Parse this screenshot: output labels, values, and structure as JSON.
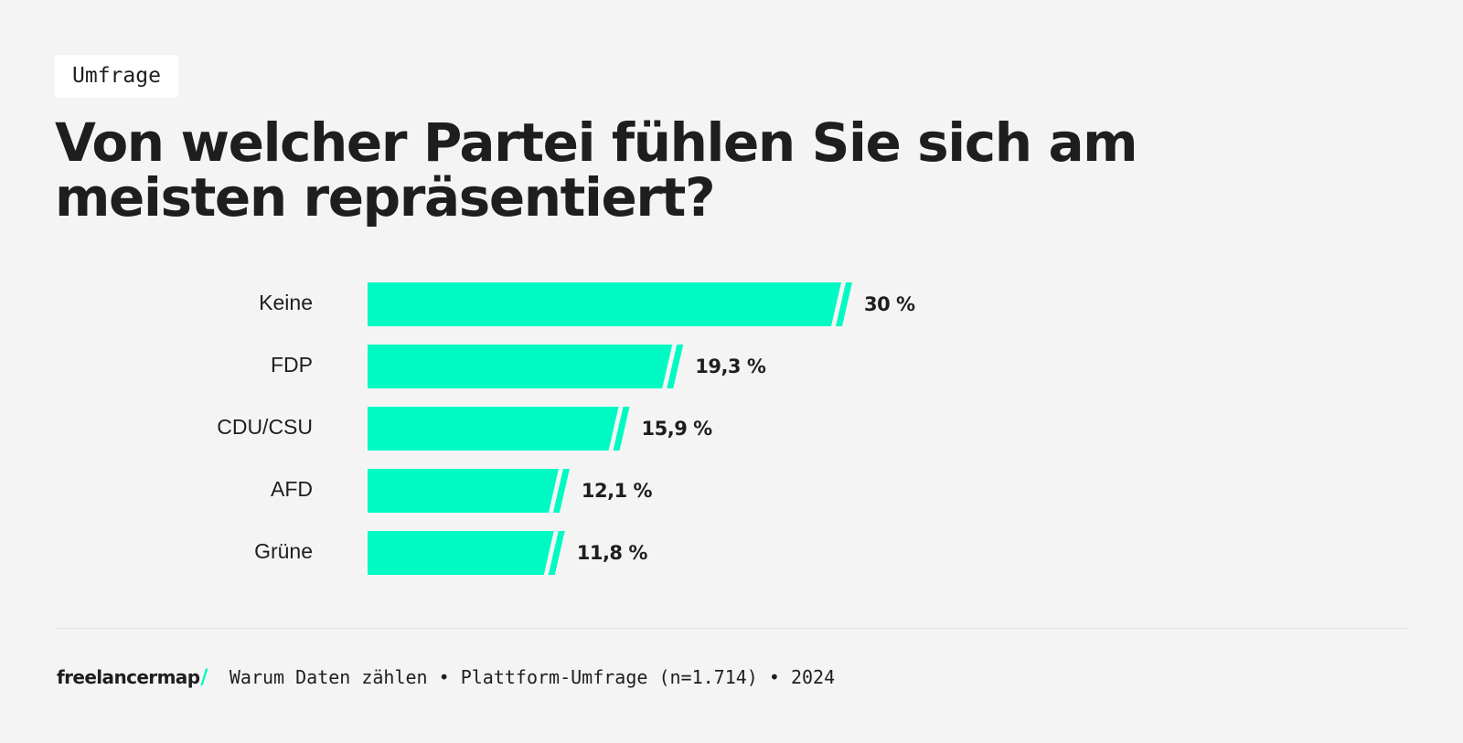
{
  "tag": "Umfrage",
  "title": "Von welcher Partei fühlen Sie sich am meisten repräsentiert?",
  "colors": {
    "bar": "#00fac4",
    "background": "#f4f4f4",
    "text": "#1e1e1e"
  },
  "chart_data": {
    "type": "bar",
    "orientation": "horizontal",
    "title": "Von welcher Partei fühlen Sie sich am meisten repräsentiert?",
    "categories": [
      "Keine",
      "FDP",
      "CDU/CSU",
      "AFD",
      "Grüne"
    ],
    "values": [
      30,
      19.3,
      15.9,
      12.1,
      11.8
    ],
    "value_labels": [
      "30 %",
      "19,3 %",
      "15,9 %",
      "12,1 %",
      "11,8 %"
    ],
    "unit": "%",
    "xlabel": "",
    "ylabel": "",
    "grid": false
  },
  "footer": {
    "brand": "freelancermap",
    "brand_slash": "/",
    "source": "Warum Daten zählen • Plattform-Umfrage (n=1.714) • 2024"
  }
}
